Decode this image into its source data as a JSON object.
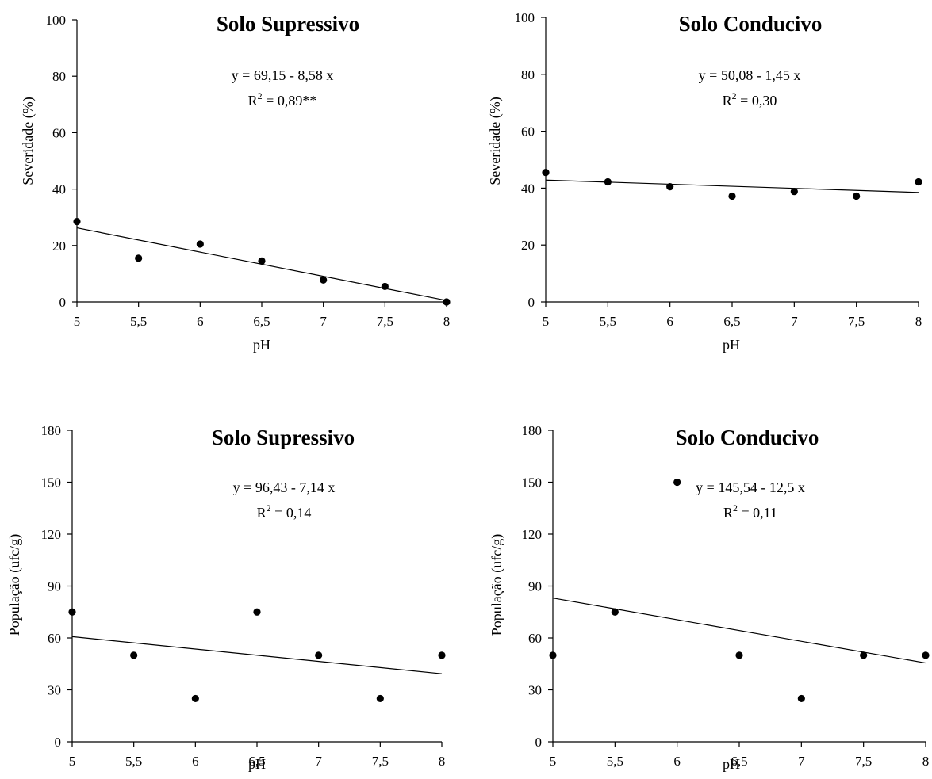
{
  "chart_data": [
    {
      "type": "scatter",
      "title": "Solo Supressivo",
      "xlabel": "pH",
      "ylabel": "Severidade (%)",
      "xlim": [
        5,
        8
      ],
      "ylim": [
        0,
        100
      ],
      "x_ticks": [
        "5",
        "5,5",
        "6",
        "6,5",
        "7",
        "7,5",
        "8"
      ],
      "y_ticks": [
        "0",
        "20",
        "40",
        "60",
        "80",
        "100"
      ],
      "x": [
        5,
        5.5,
        6,
        6.5,
        7,
        7.5,
        8
      ],
      "y": [
        28.5,
        15.5,
        20.5,
        14.5,
        7.8,
        5.5,
        0
      ],
      "trendline": {
        "equation": "y = 69,15 - 8,58 x",
        "r2_prefix": "R",
        "r2_value": " = 0,89**",
        "x": [
          5,
          8
        ],
        "y": [
          26.25,
          0.5
        ]
      }
    },
    {
      "type": "scatter",
      "title": "Solo Conducivo",
      "xlabel": "pH",
      "ylabel": "Severidade (%)",
      "xlim": [
        5,
        8
      ],
      "ylim": [
        0,
        100
      ],
      "x_ticks": [
        "5",
        "5,5",
        "6",
        "6,5",
        "7",
        "7,5",
        "8"
      ],
      "y_ticks": [
        "0",
        "20",
        "40",
        "60",
        "80",
        "100"
      ],
      "x": [
        5,
        5.5,
        6,
        6.5,
        7,
        7.5,
        8
      ],
      "y": [
        45.5,
        42.2,
        40.5,
        37.2,
        38.8,
        37.2,
        42.2
      ],
      "trendline": {
        "equation": "y = 50,08 - 1,45 x",
        "r2_prefix": "R",
        "r2_value": " = 0,30",
        "x": [
          5,
          8
        ],
        "y": [
          42.83,
          38.48
        ]
      }
    },
    {
      "type": "scatter",
      "title": "Solo Supressivo",
      "xlabel": "pH",
      "ylabel": "População (ufc/g)",
      "xlim": [
        5,
        8
      ],
      "ylim": [
        0,
        180
      ],
      "x_ticks": [
        "5",
        "5,5",
        "6",
        "6,5",
        "7",
        "7,5",
        "8"
      ],
      "y_ticks": [
        "0",
        "30",
        "60",
        "90",
        "120",
        "150",
        "180"
      ],
      "x": [
        5,
        5.5,
        6,
        6.5,
        7,
        7.5,
        8
      ],
      "y": [
        75,
        50,
        25,
        75,
        50,
        25,
        50
      ],
      "trendline": {
        "equation": "y = 96,43 - 7,14 x",
        "r2_prefix": "R",
        "r2_value": " = 0,14",
        "x": [
          5,
          8
        ],
        "y": [
          60.73,
          39.31
        ]
      }
    },
    {
      "type": "scatter",
      "title": "Solo Conducivo",
      "xlabel": "pH",
      "ylabel": "População (ufc/g)",
      "xlim": [
        5,
        8
      ],
      "ylim": [
        0,
        180
      ],
      "x_ticks": [
        "5",
        "5,5",
        "6",
        "6,5",
        "7",
        "7,5",
        "8"
      ],
      "y_ticks": [
        "0",
        "30",
        "60",
        "90",
        "120",
        "150",
        "180"
      ],
      "x": [
        5,
        5.5,
        6,
        6.5,
        7,
        7.5,
        8
      ],
      "y": [
        50,
        75,
        150,
        50,
        25,
        50,
        50
      ],
      "trendline": {
        "equation": "y = 145,54 - 12,5 x",
        "r2_prefix": "R",
        "r2_value": " = 0,11",
        "x": [
          5,
          8
        ],
        "y": [
          83.04,
          45.54
        ]
      }
    }
  ]
}
